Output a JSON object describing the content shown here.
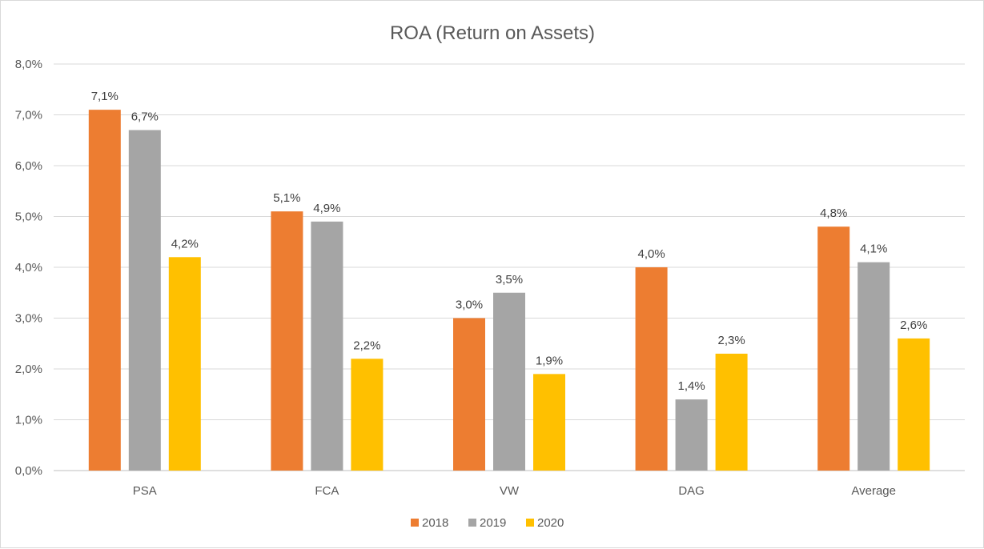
{
  "chart_data": {
    "type": "bar",
    "title": "ROA (Return on Assets)",
    "xlabel": "",
    "ylabel": "",
    "categories": [
      "PSA",
      "FCA",
      "VW",
      "DAG",
      "Average"
    ],
    "series": [
      {
        "name": "2018",
        "color": "#ED7D31",
        "values": [
          7.1,
          5.1,
          3.0,
          4.0,
          4.8
        ],
        "labels": [
          "7,1%",
          "5,1%",
          "3,0%",
          "4,0%",
          "4,8%"
        ]
      },
      {
        "name": "2019",
        "color": "#A5A5A5",
        "values": [
          6.7,
          4.9,
          3.5,
          1.4,
          4.1
        ],
        "labels": [
          "6,7%",
          "4,9%",
          "3,5%",
          "1,4%",
          "4,1%"
        ]
      },
      {
        "name": "2020",
        "color": "#FFC000",
        "values": [
          4.2,
          2.2,
          1.9,
          2.3,
          2.6
        ],
        "labels": [
          "4,2%",
          "2,2%",
          "1,9%",
          "2,3%",
          "2,6%"
        ]
      }
    ],
    "ylim": [
      0,
      8
    ],
    "yticks": [
      "0,0%",
      "1,0%",
      "2,0%",
      "3,0%",
      "4,0%",
      "5,0%",
      "6,0%",
      "7,0%",
      "8,0%"
    ],
    "grid": true,
    "legend_position": "bottom"
  }
}
